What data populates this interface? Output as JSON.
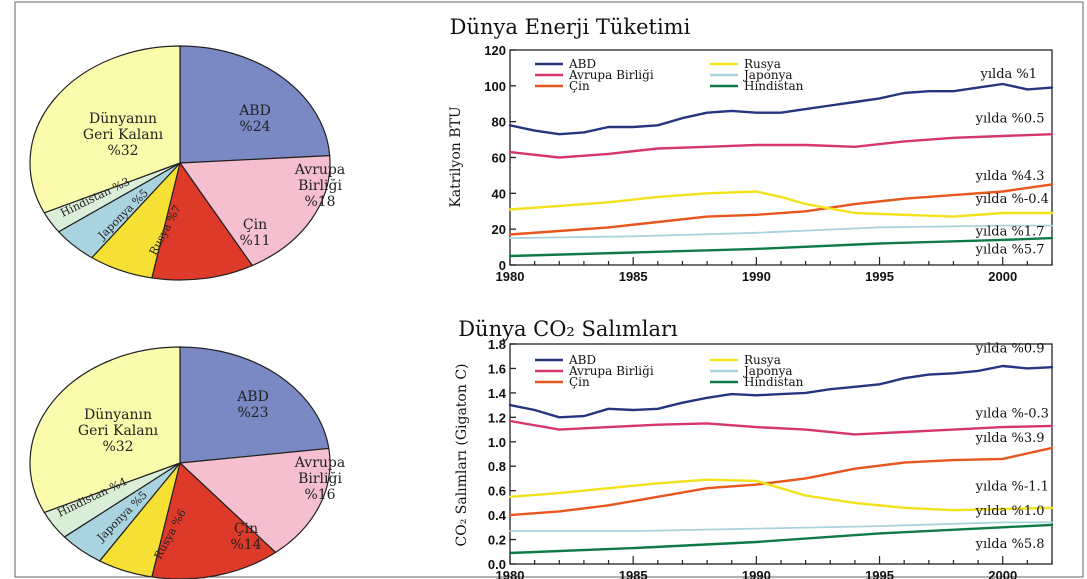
{
  "colors": {
    "ABD": "#26367e",
    "Avrupa Birliği": "#d6366e",
    "Rusya": "#f2e21c",
    "Japonya": "#a9d3dd",
    "Çin": "#e8561f",
    "Hindistan": "#0f7a46",
    "pie_ABD": "#7a88c4",
    "pie_Avrupa Birliği": "#f6bfd0",
    "pie_Çin": "#dd3a2a",
    "pie_Rusya": "#f6e033",
    "pie_Japonya": "#a9d3df",
    "pie_Hindistan": "#dbeed8",
    "pie_Dünyanın Geri Kalanı": "#fbfbad"
  },
  "chart_data": [
    {
      "type": "pie",
      "title": "",
      "slices": [
        {
          "name": "ABD",
          "label_lines": [
            "ABD",
            "%24"
          ],
          "value": 24
        },
        {
          "name": "Avrupa Birliği",
          "label_lines": [
            "Avrupa",
            "Birliği",
            "%18"
          ],
          "value": 18
        },
        {
          "name": "Çin",
          "label_lines": [
            "Çin",
            "%11"
          ],
          "value": 11
        },
        {
          "name": "Rusya",
          "label_lines": [
            "Rusya %7"
          ],
          "value": 7
        },
        {
          "name": "Japonya",
          "label_lines": [
            "Japonya %5"
          ],
          "value": 5
        },
        {
          "name": "Hindistan",
          "label_lines": [
            "Hindistan %3"
          ],
          "value": 3
        },
        {
          "name": "Dünyanın Geri Kalanı",
          "label_lines": [
            "Dünyanın",
            "Geri Kalanı",
            "%32"
          ],
          "value": 32
        }
      ]
    },
    {
      "type": "line",
      "title": "Dünya Enerji Tüketimi",
      "xlabel": "",
      "ylabel": "Katrilyon BTU",
      "xlim": [
        1980,
        2002
      ],
      "ylim": [
        0,
        120
      ],
      "xticks": [
        1980,
        1985,
        1990,
        1995,
        2000
      ],
      "yticks": [
        0,
        20,
        40,
        60,
        80,
        100,
        120
      ],
      "series": [
        {
          "name": "ABD",
          "x": [
            1980,
            1981,
            1982,
            1983,
            1984,
            1985,
            1986,
            1987,
            1988,
            1989,
            1990,
            1991,
            1992,
            1993,
            1994,
            1995,
            1996,
            1997,
            1998,
            1999,
            2000,
            2001,
            2002
          ],
          "y": [
            78,
            75,
            73,
            74,
            77,
            77,
            78,
            82,
            85,
            86,
            85,
            85,
            87,
            89,
            91,
            93,
            96,
            97,
            97,
            99,
            101,
            98,
            99
          ]
        },
        {
          "name": "Avrupa Birliği",
          "x": [
            1980,
            1982,
            1984,
            1986,
            1988,
            1990,
            1992,
            1994,
            1996,
            1998,
            2000,
            2002
          ],
          "y": [
            63,
            60,
            62,
            65,
            66,
            67,
            67,
            66,
            69,
            71,
            72,
            73
          ]
        },
        {
          "name": "Çin",
          "x": [
            1980,
            1982,
            1984,
            1986,
            1988,
            1990,
            1992,
            1994,
            1996,
            1998,
            2000,
            2002
          ],
          "y": [
            17,
            19,
            21,
            24,
            27,
            28,
            30,
            34,
            37,
            39,
            41,
            45
          ]
        },
        {
          "name": "Rusya",
          "x": [
            1980,
            1982,
            1984,
            1986,
            1988,
            1990,
            1991,
            1992,
            1994,
            1996,
            1998,
            2000,
            2002
          ],
          "y": [
            31,
            33,
            35,
            38,
            40,
            41,
            38,
            34,
            29,
            28,
            27,
            29,
            29
          ]
        },
        {
          "name": "Japonya",
          "x": [
            1980,
            1985,
            1990,
            1995,
            2000,
            2002
          ],
          "y": [
            15,
            16,
            18,
            21,
            22,
            22
          ]
        },
        {
          "name": "Hindistan",
          "x": [
            1980,
            1985,
            1990,
            1995,
            2000,
            2002
          ],
          "y": [
            5,
            7,
            9,
            12,
            14,
            15
          ]
        }
      ],
      "legend": {
        "placement": "top-left",
        "order": [
          "ABD",
          "Avrupa Birliği",
          "Çin",
          "Rusya",
          "Japonya",
          "Hindistan"
        ]
      },
      "annotations": [
        {
          "text": "yılda %1",
          "x": 1999.1,
          "y": 104.5
        },
        {
          "text": "yılda %0.5",
          "x": 1998.9,
          "y": 79.5
        },
        {
          "text": "yılda %4.3",
          "x": 1998.9,
          "y": 47.5
        },
        {
          "text": "yılda %-0.4",
          "x": 1998.9,
          "y": 34.5
        },
        {
          "text": "yılda %1.7",
          "x": 1998.9,
          "y": 16.5
        },
        {
          "text": "yılda %5.7",
          "x": 1998.9,
          "y": 6.5
        }
      ]
    },
    {
      "type": "pie",
      "title": "",
      "slices": [
        {
          "name": "ABD",
          "label_lines": [
            "ABD",
            "%23"
          ],
          "value": 23
        },
        {
          "name": "Avrupa Birliği",
          "label_lines": [
            "Avrupa",
            "Birliği",
            "%16"
          ],
          "value": 16
        },
        {
          "name": "Çin",
          "label_lines": [
            "Çin",
            "%14"
          ],
          "value": 14
        },
        {
          "name": "Rusya",
          "label_lines": [
            "Rusya %6"
          ],
          "value": 6
        },
        {
          "name": "Japonya",
          "label_lines": [
            "Japonya %5"
          ],
          "value": 5
        },
        {
          "name": "Hindistan",
          "label_lines": [
            "Hindistan %4"
          ],
          "value": 4
        },
        {
          "name": "Dünyanın Geri Kalanı",
          "label_lines": [
            "Dünyanın",
            "Geri Kalanı",
            "%32"
          ],
          "value": 32
        }
      ]
    },
    {
      "type": "line",
      "title": "Dünya CO₂ Salımları",
      "xlabel": "",
      "ylabel": "CO₂ Salımları (Gigaton C)",
      "xlim": [
        1980,
        2002
      ],
      "ylim": [
        0,
        1.8
      ],
      "xticks": [
        1980,
        1985,
        1990,
        1995,
        2000
      ],
      "yticks": [
        0,
        0.2,
        0.4,
        0.6,
        0.8,
        1.0,
        1.2,
        1.4,
        1.6,
        1.8
      ],
      "series": [
        {
          "name": "ABD",
          "x": [
            1980,
            1981,
            1982,
            1983,
            1984,
            1985,
            1986,
            1987,
            1988,
            1989,
            1990,
            1991,
            1992,
            1993,
            1994,
            1995,
            1996,
            1997,
            1998,
            1999,
            2000,
            2001,
            2002
          ],
          "y": [
            1.3,
            1.26,
            1.2,
            1.21,
            1.27,
            1.26,
            1.27,
            1.32,
            1.36,
            1.39,
            1.38,
            1.39,
            1.4,
            1.43,
            1.45,
            1.47,
            1.52,
            1.55,
            1.56,
            1.58,
            1.62,
            1.6,
            1.61
          ]
        },
        {
          "name": "Avrupa Birliği",
          "x": [
            1980,
            1982,
            1984,
            1986,
            1988,
            1990,
            1992,
            1994,
            1996,
            1998,
            2000,
            2002
          ],
          "y": [
            1.17,
            1.1,
            1.12,
            1.14,
            1.15,
            1.12,
            1.1,
            1.06,
            1.08,
            1.1,
            1.12,
            1.13
          ]
        },
        {
          "name": "Çin",
          "x": [
            1980,
            1982,
            1984,
            1986,
            1988,
            1990,
            1992,
            1994,
            1996,
            1998,
            2000,
            2002
          ],
          "y": [
            0.4,
            0.43,
            0.48,
            0.55,
            0.62,
            0.65,
            0.7,
            0.78,
            0.83,
            0.85,
            0.86,
            0.95
          ]
        },
        {
          "name": "Rusya",
          "x": [
            1980,
            1982,
            1984,
            1986,
            1988,
            1990,
            1991,
            1992,
            1994,
            1996,
            1998,
            2000,
            2002
          ],
          "y": [
            0.55,
            0.58,
            0.62,
            0.66,
            0.69,
            0.68,
            0.62,
            0.56,
            0.5,
            0.46,
            0.44,
            0.45,
            0.46
          ]
        },
        {
          "name": "Japonya",
          "x": [
            1980,
            1985,
            1990,
            1995,
            2000,
            2002
          ],
          "y": [
            0.27,
            0.27,
            0.29,
            0.31,
            0.34,
            0.34
          ]
        },
        {
          "name": "Hindistan",
          "x": [
            1980,
            1985,
            1990,
            1995,
            2000,
            2002
          ],
          "y": [
            0.09,
            0.13,
            0.18,
            0.25,
            0.3,
            0.32
          ]
        }
      ],
      "legend": {
        "placement": "top-left",
        "order": [
          "ABD",
          "Avrupa Birliği",
          "Çin",
          "Rusya",
          "Japonya",
          "Hindistan"
        ]
      },
      "annotations": [
        {
          "text": "yılda %0.9",
          "x": 1998.9,
          "y": 1.73
        },
        {
          "text": "yılda %-0.3",
          "x": 1998.9,
          "y": 1.2
        },
        {
          "text": "yılda %3.9",
          "x": 1998.9,
          "y": 1.0
        },
        {
          "text": "yılda %-1.1",
          "x": 1998.9,
          "y": 0.6
        },
        {
          "text": "yılda %1.0",
          "x": 1998.9,
          "y": 0.4
        },
        {
          "text": "yılda %5.8",
          "x": 1998.9,
          "y": 0.13
        }
      ]
    }
  ]
}
